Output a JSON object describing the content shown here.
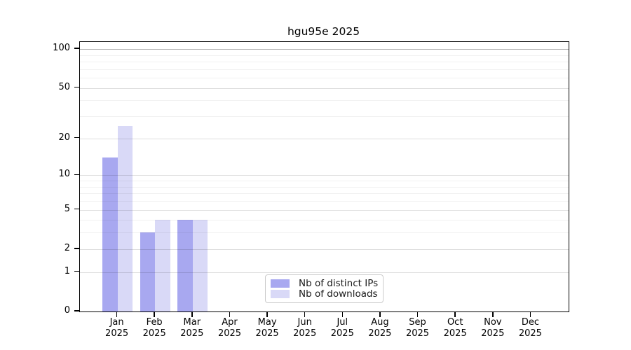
{
  "chart_data": {
    "type": "bar",
    "title": "hgu95e 2025",
    "year_label": "2025",
    "categories": [
      "Jan",
      "Feb",
      "Mar",
      "Apr",
      "May",
      "Jun",
      "Jul",
      "Aug",
      "Sep",
      "Oct",
      "Nov",
      "Dec"
    ],
    "series": [
      {
        "name": "Nb of distinct IPs",
        "color": "#a8a8f0",
        "values": [
          14,
          3,
          4,
          0,
          0,
          0,
          0,
          0,
          0,
          0,
          0,
          0
        ]
      },
      {
        "name": "Nb of downloads",
        "color": "#d9d9f7",
        "values": [
          25,
          4,
          4,
          0,
          0,
          0,
          0,
          0,
          0,
          0,
          0,
          0
        ]
      }
    ],
    "y_axis": {
      "scale": "log10(1+x)",
      "tick_values": [
        0,
        1,
        2,
        5,
        10,
        20,
        50,
        100
      ],
      "minor_gridline_values": [
        3,
        4,
        6,
        7,
        8,
        9,
        30,
        40,
        60,
        70,
        80,
        90
      ],
      "top_value": 100,
      "ylim_top": 115
    },
    "grid": "on",
    "legend_position": "lower center",
    "colors": {
      "spine": "#000000",
      "minor_grid": "rgba(0,0,0,0.055)",
      "major_grid": "rgba(0,0,0,0.13)",
      "top_grid": "rgba(0,0,0,0.30)"
    }
  }
}
